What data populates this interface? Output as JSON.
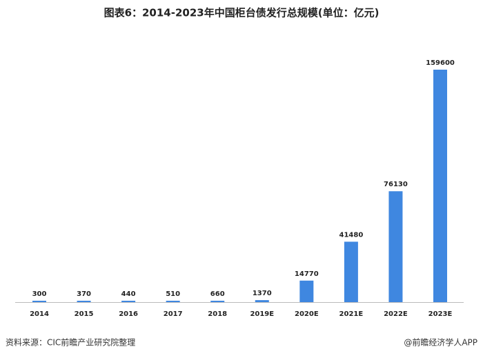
{
  "chart_data": {
    "type": "bar",
    "title": "图表6：2014-2023年中国柜台债发行总规模(单位：亿元)",
    "categories": [
      "2014",
      "2015",
      "2016",
      "2017",
      "2018",
      "2019E",
      "2020E",
      "2021E",
      "2022E",
      "2023E"
    ],
    "values": [
      300,
      370,
      440,
      510,
      660,
      1370,
      14770,
      41480,
      76130,
      159600
    ],
    "color": "#3f87e0",
    "source": "资料来源：CIC前瞻产业研究院整理",
    "credit": "@前瞻经济学人APP"
  }
}
